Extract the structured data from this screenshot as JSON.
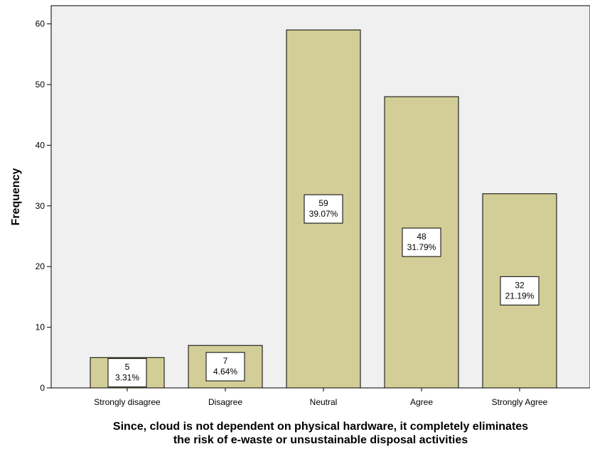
{
  "chart_data": {
    "type": "bar",
    "categories": [
      "Strongly disagree",
      "Disagree",
      "Neutral",
      "Agree",
      "Strongly Agree"
    ],
    "values": [
      5,
      7,
      59,
      48,
      32
    ],
    "percent_labels": [
      "3.31%",
      "4.64%",
      "39.07%",
      "31.79%",
      "21.19%"
    ],
    "title": "",
    "xlabel": "Since, cloud is not dependent on physical hardware, it completely eliminates the risk of e-waste or unsustainable disposal activities",
    "xlabel_lines": [
      "Since, cloud is not dependent on physical hardware, it completely eliminates",
      "the risk of e-waste or unsustainable disposal activities"
    ],
    "ylabel": "Frequency",
    "yticks": [
      0,
      10,
      20,
      30,
      40,
      50,
      60
    ],
    "ylim": [
      0,
      63
    ],
    "grid": false,
    "colors": {
      "plot_bg": "#f0f0f0",
      "bar_fill": "#d3ce97",
      "bar_stroke": "#000000",
      "axis": "#000000",
      "label_box": "#ffffff"
    }
  }
}
